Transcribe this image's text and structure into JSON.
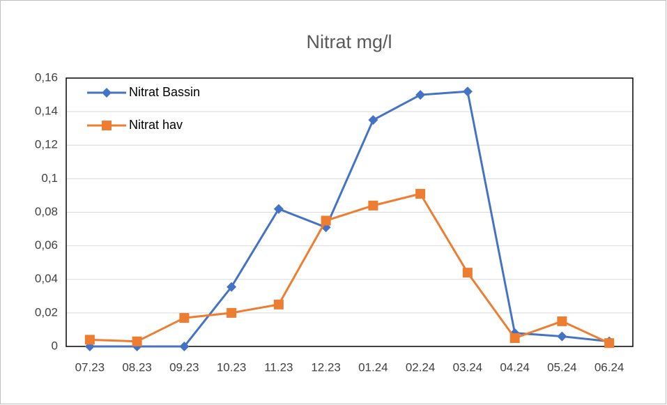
{
  "chart_data": {
    "type": "line",
    "title": "Nitrat mg/l",
    "categories": [
      "07.23",
      "08.23",
      "09.23",
      "10.23",
      "11.23",
      "12.23",
      "01.24",
      "02.24",
      "03.24",
      "04.24",
      "05.24",
      "06.24"
    ],
    "series": [
      {
        "name": "Nitrat Bassin",
        "color": "#4472c4",
        "marker": "diamond",
        "values": [
          0,
          0,
          0,
          0.0355,
          0.082,
          0.071,
          0.135,
          0.15,
          0.152,
          0.008,
          0.006,
          0.003
        ]
      },
      {
        "name": "Nitrat hav",
        "color": "#ed7d31",
        "marker": "square",
        "values": [
          0.004,
          0.003,
          0.017,
          0.02,
          0.025,
          0.075,
          0.084,
          0.091,
          0.044,
          0.005,
          0.015,
          0.002
        ]
      }
    ],
    "ylim": [
      0,
      0.16
    ],
    "yticks": [
      0,
      {
        "value": 0.02,
        "label": "0,02"
      },
      {
        "value": 0.04,
        "label": "0,04"
      },
      {
        "value": 0.06,
        "label": "0,06"
      },
      {
        "value": 0.08,
        "label": "0,08"
      },
      {
        "value": 0.1,
        "label": "0,1"
      },
      {
        "value": 0.12,
        "label": "0,12"
      },
      {
        "value": 0.14,
        "label": "0,14"
      },
      {
        "value": 0.16,
        "label": "0,16"
      }
    ],
    "grid": true,
    "legend": "top-left"
  }
}
